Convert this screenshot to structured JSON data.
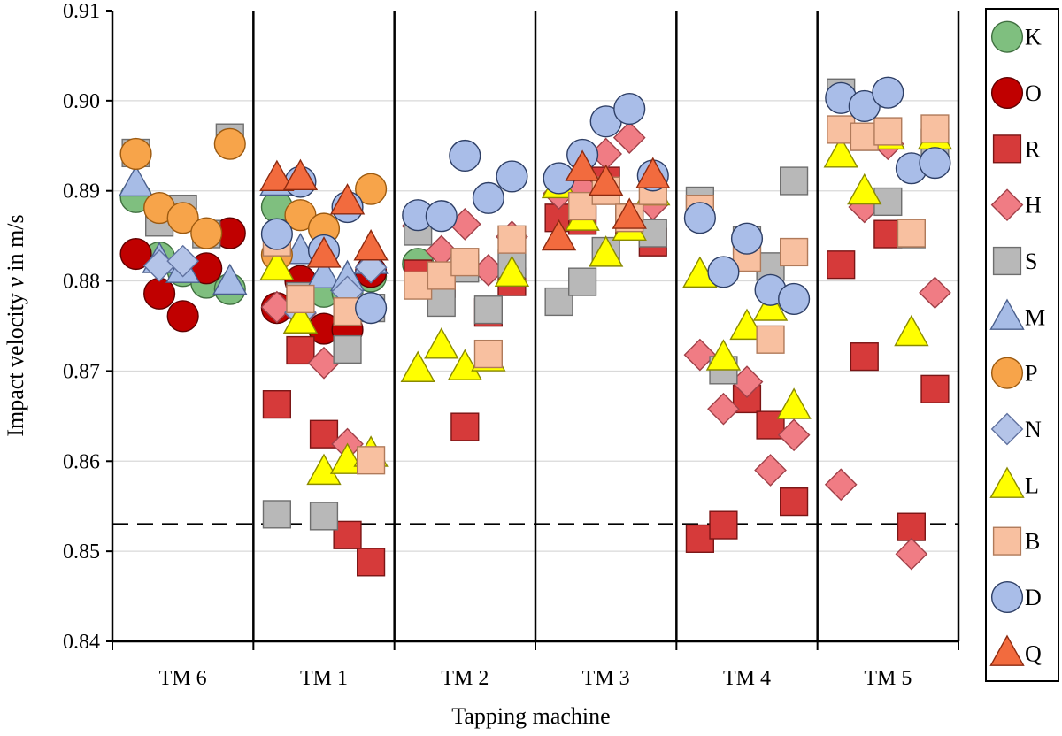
{
  "chart_data": {
    "type": "scatter",
    "title": "",
    "xlabel": "Tapping machine",
    "ylabel": {
      "prefix": "Impact velocity ",
      "var": "v",
      "suffix": " in m/s"
    },
    "ylim": [
      0.84,
      0.91
    ],
    "yticks": [
      0.84,
      0.85,
      0.86,
      0.87,
      0.88,
      0.89,
      0.9,
      0.91
    ],
    "ytick_labels": [
      "0.84",
      "0.85",
      "0.86",
      "0.87",
      "0.88",
      "0.89",
      "0.90",
      "0.91"
    ],
    "categories": [
      "TM 6",
      "TM 1",
      "TM 2",
      "TM 3",
      "TM 4",
      "TM 5"
    ],
    "points_per_category": 5,
    "reference_line": {
      "y": 0.853,
      "style": "dashed"
    },
    "legend_position": "right",
    "series": [
      {
        "name": "K",
        "marker": "circle",
        "fill": "#7fbf7f",
        "stroke": "#3f6f3f",
        "points": [
          [
            1,
            0.8893
          ],
          [
            2,
            0.8826
          ],
          [
            3,
            0.8811
          ],
          [
            4,
            0.8798
          ],
          [
            5,
            0.8791
          ],
          [
            6,
            0.8882
          ],
          [
            8,
            0.8788
          ],
          [
            9,
            0.8787
          ],
          [
            10,
            0.8805
          ],
          [
            11,
            0.8819
          ]
        ]
      },
      {
        "name": "O",
        "marker": "circle",
        "fill": "#c00000",
        "stroke": "#600000",
        "points": [
          [
            1,
            0.883
          ],
          [
            2,
            0.8786
          ],
          [
            3,
            0.8761
          ],
          [
            4,
            0.8814
          ],
          [
            5,
            0.8853
          ],
          [
            6,
            0.877
          ],
          [
            7,
            0.88
          ],
          [
            8,
            0.8747
          ],
          [
            9,
            0.8746
          ],
          [
            10,
            0.881
          ]
        ]
      },
      {
        "name": "R",
        "marker": "square",
        "fill": "#d63a3a",
        "stroke": "#7a1515",
        "points": [
          [
            6,
            0.8663
          ],
          [
            7,
            0.8723
          ],
          [
            8,
            0.863
          ],
          [
            9,
            0.8518
          ],
          [
            10,
            0.8488
          ],
          [
            11,
            0.8808
          ],
          [
            12,
            0.8797
          ],
          [
            13,
            0.8638
          ],
          [
            14,
            0.8765
          ],
          [
            15,
            0.8799
          ],
          [
            16,
            0.887
          ],
          [
            17,
            0.8867
          ],
          [
            18,
            0.8911
          ],
          [
            19,
            0.8865
          ],
          [
            20,
            0.8843
          ],
          [
            21,
            0.8514
          ],
          [
            22,
            0.8529
          ],
          [
            23,
            0.8669
          ],
          [
            24,
            0.864
          ],
          [
            25,
            0.8555
          ],
          [
            26,
            0.8818
          ],
          [
            27,
            0.8716
          ],
          [
            28,
            0.8852
          ],
          [
            29,
            0.8527
          ],
          [
            30,
            0.868
          ]
        ]
      },
      {
        "name": "H",
        "marker": "diamond",
        "fill": "#f07c84",
        "stroke": "#a04048",
        "points": [
          [
            6,
            0.8771
          ],
          [
            7,
            0.8764
          ],
          [
            8,
            0.8709
          ],
          [
            9,
            0.8619
          ],
          [
            11,
            0.8861
          ],
          [
            12,
            0.8833
          ],
          [
            13,
            0.8863
          ],
          [
            14,
            0.8812
          ],
          [
            15,
            0.8849
          ],
          [
            16,
            0.8897
          ],
          [
            17,
            0.8903
          ],
          [
            18,
            0.8941
          ],
          [
            19,
            0.8959
          ],
          [
            20,
            0.8885
          ],
          [
            21,
            0.8718
          ],
          [
            22,
            0.8658
          ],
          [
            23,
            0.8688
          ],
          [
            24,
            0.859
          ],
          [
            25,
            0.8629
          ],
          [
            26,
            0.8574
          ],
          [
            27,
            0.8882
          ],
          [
            28,
            0.8952
          ],
          [
            29,
            0.8497
          ],
          [
            30,
            0.8787
          ]
        ]
      },
      {
        "name": "S",
        "marker": "square",
        "fill": "#b8b8b8",
        "stroke": "#6e6e6e",
        "points": [
          [
            1,
            0.8942
          ],
          [
            2,
            0.8865
          ],
          [
            3,
            0.888
          ],
          [
            4,
            0.8852
          ],
          [
            5,
            0.8959
          ],
          [
            6,
            0.8541
          ],
          [
            7,
            0.8783
          ],
          [
            8,
            0.8539
          ],
          [
            9,
            0.8724
          ],
          [
            10,
            0.877
          ],
          [
            11,
            0.8855
          ],
          [
            12,
            0.8776
          ],
          [
            13,
            0.8814
          ],
          [
            14,
            0.8768
          ],
          [
            15,
            0.8819
          ],
          [
            16,
            0.8777
          ],
          [
            17,
            0.8799
          ],
          [
            18,
            0.8833
          ],
          [
            19,
            0.8871
          ],
          [
            20,
            0.8853
          ],
          [
            21,
            0.8889
          ],
          [
            22,
            0.8701
          ],
          [
            23,
            0.8845
          ],
          [
            24,
            0.8816
          ],
          [
            25,
            0.8911
          ],
          [
            26,
            0.9009
          ],
          [
            27,
            0.896
          ],
          [
            28,
            0.8888
          ],
          [
            29,
            0.8852
          ],
          [
            30,
            0.8953
          ]
        ]
      },
      {
        "name": "M",
        "marker": "triangle",
        "fill": "#a7bce6",
        "stroke": "#4a5f8c",
        "points": [
          [
            1,
            0.8908
          ],
          [
            2,
            0.8823
          ],
          [
            3,
            0.8812
          ],
          [
            5,
            0.8799
          ],
          [
            6,
            0.8909
          ],
          [
            7,
            0.8833
          ],
          [
            8,
            0.8806
          ],
          [
            9,
            0.8803
          ],
          [
            10,
            0.8822
          ]
        ]
      },
      {
        "name": "P",
        "marker": "circle",
        "fill": "#f7a44a",
        "stroke": "#9c5a10",
        "points": [
          [
            1,
            0.8941
          ],
          [
            2,
            0.8881
          ],
          [
            3,
            0.887
          ],
          [
            4,
            0.8853
          ],
          [
            5,
            0.8952
          ],
          [
            6,
            0.8829
          ],
          [
            7,
            0.8873
          ],
          [
            8,
            0.8858
          ],
          [
            10,
            0.8902
          ]
        ]
      },
      {
        "name": "N",
        "marker": "diamond",
        "fill": "#b4c4e8",
        "stroke": "#6072a0",
        "points": [
          [
            2,
            0.8817
          ],
          [
            3,
            0.8822
          ],
          [
            7,
            0.8765
          ],
          [
            9,
            0.8788
          ],
          [
            10,
            0.8815
          ]
        ]
      },
      {
        "name": "L",
        "marker": "triangle",
        "fill": "#ffff00",
        "stroke": "#8a8a00",
        "points": [
          [
            6,
            0.8815
          ],
          [
            7,
            0.8756
          ],
          [
            8,
            0.8588
          ],
          [
            9,
            0.86
          ],
          [
            10,
            0.8608
          ],
          [
            11,
            0.8702
          ],
          [
            12,
            0.8728
          ],
          [
            13,
            0.8704
          ],
          [
            14,
            0.8714
          ],
          [
            15,
            0.8808
          ],
          [
            16,
            0.8906
          ],
          [
            17,
            0.887
          ],
          [
            18,
            0.883
          ],
          [
            19,
            0.8859
          ],
          [
            20,
            0.8898
          ],
          [
            21,
            0.8807
          ],
          [
            22,
            0.8715
          ],
          [
            23,
            0.8749
          ],
          [
            24,
            0.877
          ],
          [
            25,
            0.8661
          ],
          [
            26,
            0.894
          ],
          [
            27,
            0.8899
          ],
          [
            28,
            0.896
          ],
          [
            29,
            0.8742
          ],
          [
            30,
            0.896
          ]
        ]
      },
      {
        "name": "B",
        "marker": "square",
        "fill": "#f8c0a0",
        "stroke": "#b07a5a",
        "points": [
          [
            6,
            0.8843
          ],
          [
            7,
            0.878
          ],
          [
            9,
            0.8766
          ],
          [
            10,
            0.8601
          ],
          [
            11,
            0.8795
          ],
          [
            12,
            0.8806
          ],
          [
            13,
            0.8821
          ],
          [
            14,
            0.8719
          ],
          [
            15,
            0.8846
          ],
          [
            17,
            0.8883
          ],
          [
            18,
            0.89
          ],
          [
            19,
            0.887
          ],
          [
            20,
            0.89
          ],
          [
            21,
            0.888
          ],
          [
            23,
            0.8826
          ],
          [
            24,
            0.8735
          ],
          [
            25,
            0.8832
          ],
          [
            26,
            0.8968
          ],
          [
            27,
            0.896
          ],
          [
            28,
            0.8966
          ],
          [
            29,
            0.8853
          ],
          [
            30,
            0.8969
          ]
        ]
      },
      {
        "name": "D",
        "marker": "circle",
        "fill": "#a9bde8",
        "stroke": "#2e3f66",
        "points": [
          [
            6,
            0.8852
          ],
          [
            7,
            0.891
          ],
          [
            8,
            0.8834
          ],
          [
            9,
            0.8882
          ],
          [
            10,
            0.877
          ],
          [
            11,
            0.8873
          ],
          [
            12,
            0.8872
          ],
          [
            13,
            0.8939
          ],
          [
            14,
            0.8892
          ],
          [
            15,
            0.8916
          ],
          [
            16,
            0.8914
          ],
          [
            17,
            0.894
          ],
          [
            18,
            0.8977
          ],
          [
            19,
            0.8991
          ],
          [
            20,
            0.8917
          ],
          [
            21,
            0.887
          ],
          [
            22,
            0.881
          ],
          [
            23,
            0.8847
          ],
          [
            24,
            0.879
          ],
          [
            25,
            0.878
          ],
          [
            26,
            0.9003
          ],
          [
            27,
            0.8994
          ],
          [
            28,
            0.9009
          ],
          [
            29,
            0.8925
          ],
          [
            30,
            0.8931
          ]
        ]
      },
      {
        "name": "Q",
        "marker": "triangle",
        "fill": "#f26b3e",
        "stroke": "#8c2a10",
        "points": [
          [
            6,
            0.8914
          ],
          [
            7,
            0.8915
          ],
          [
            8,
            0.8829
          ],
          [
            9,
            0.8888
          ],
          [
            10,
            0.8837
          ],
          [
            16,
            0.8848
          ],
          [
            17,
            0.8925
          ],
          [
            18,
            0.8909
          ],
          [
            19,
            0.8872
          ],
          [
            20,
            0.8917
          ]
        ]
      }
    ]
  }
}
